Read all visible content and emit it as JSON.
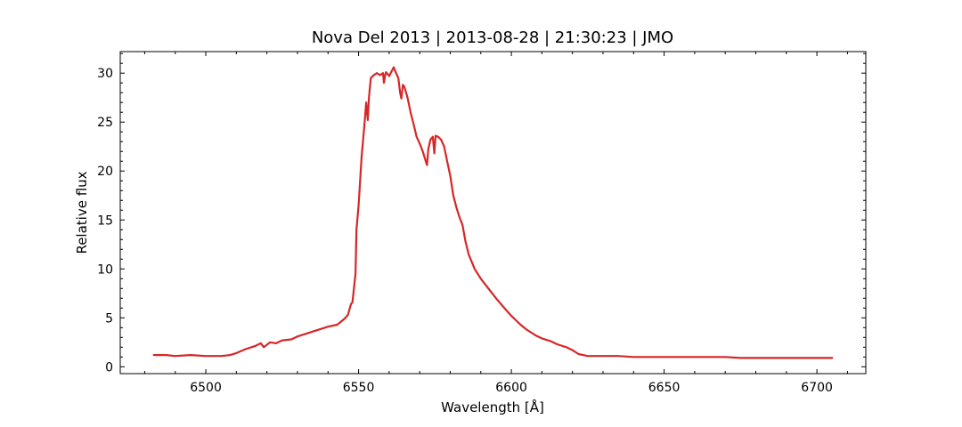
{
  "chart_data": {
    "type": "line",
    "title": "Nova Del 2013 | 2013-08-28 | 21:30:23 | JMO",
    "xlabel": "Wavelength [Å]",
    "ylabel": "Relative flux",
    "xlim": [
      6472,
      6716
    ],
    "ylim": [
      -0.7,
      32.2
    ],
    "x_ticks": [
      6500,
      6550,
      6600,
      6650,
      6700
    ],
    "y_ticks": [
      0,
      5,
      10,
      15,
      20,
      25,
      30
    ],
    "x_minor_step": 10,
    "y_minor_step": 1,
    "tick_direction": "in",
    "grid": false,
    "legend": "none",
    "series": [
      {
        "color": "#d62728",
        "x": [
          6483,
          6487,
          6490,
          6495,
          6500,
          6505,
          6508,
          6510,
          6513,
          6516,
          6518,
          6519,
          6521,
          6523,
          6525,
          6528,
          6530,
          6533,
          6535,
          6538,
          6540,
          6543,
          6545,
          6546,
          6546.5,
          6547.5,
          6548,
          6549,
          6549.3,
          6550,
          6551,
          6552,
          6552.5,
          6553,
          6553.4,
          6554,
          6555,
          6556,
          6557,
          6558,
          6558.3,
          6558.7,
          6559,
          6560,
          6561,
          6561.5,
          6562,
          6563,
          6563.6,
          6564,
          6564.5,
          6565,
          6566,
          6567,
          6568,
          6569,
          6570,
          6571,
          6572,
          6572.4,
          6572.8,
          6573.5,
          6574.3,
          6574.8,
          6575.2,
          6576,
          6577,
          6578,
          6579,
          6580,
          6581,
          6582,
          6583,
          6584,
          6585,
          6586,
          6588,
          6590,
          6592,
          6595,
          6598,
          6600,
          6603,
          6605,
          6608,
          6610,
          6613,
          6615,
          6618,
          6620,
          6622,
          6625,
          6630,
          6635,
          6640,
          6645,
          6650,
          6655,
          6660,
          6665,
          6670,
          6675,
          6680,
          6685,
          6690,
          6695,
          6700,
          6705
        ],
        "y": [
          1.2,
          1.2,
          1.1,
          1.2,
          1.1,
          1.1,
          1.2,
          1.4,
          1.8,
          2.1,
          2.4,
          2.0,
          2.5,
          2.4,
          2.7,
          2.8,
          3.1,
          3.4,
          3.6,
          3.9,
          4.1,
          4.3,
          4.8,
          5.1,
          5.3,
          6.4,
          6.6,
          9.5,
          14.0,
          16.5,
          21.5,
          25.0,
          27.0,
          25.2,
          27.5,
          29.5,
          29.8,
          30.0,
          29.8,
          30.0,
          29.0,
          29.8,
          30.1,
          29.7,
          30.3,
          30.6,
          30.2,
          29.5,
          28.0,
          27.4,
          28.8,
          28.6,
          27.5,
          26.0,
          24.8,
          23.5,
          22.8,
          22.0,
          21.0,
          20.6,
          22.2,
          23.2,
          23.5,
          21.8,
          23.6,
          23.5,
          23.2,
          22.5,
          21.0,
          19.5,
          17.5,
          16.3,
          15.3,
          14.5,
          12.8,
          11.5,
          10.0,
          9.0,
          8.2,
          7.0,
          5.9,
          5.2,
          4.3,
          3.8,
          3.2,
          2.9,
          2.6,
          2.3,
          2.0,
          1.7,
          1.3,
          1.1,
          1.1,
          1.1,
          1.0,
          1.0,
          1.0,
          1.0,
          1.0,
          1.0,
          1.0,
          0.9,
          0.9,
          0.9,
          0.9,
          0.9,
          0.9,
          0.9
        ]
      }
    ]
  }
}
